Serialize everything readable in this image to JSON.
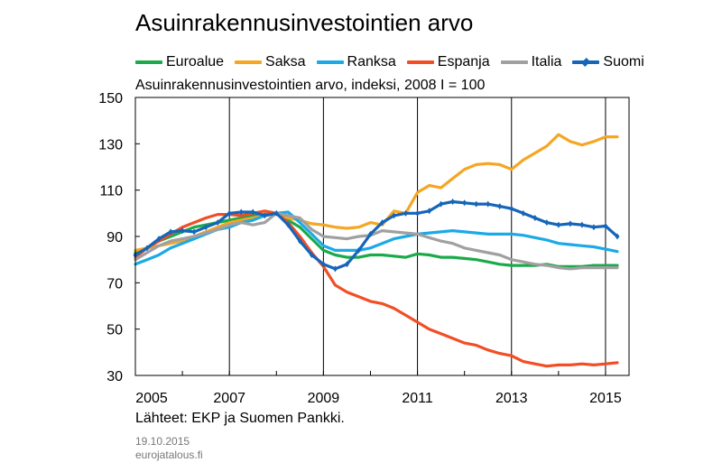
{
  "header": {
    "title": "Asuinrakennusinvestointien arvo",
    "subtitle": "Asuinrakennusinvestointien arvo, indeksi, 2008 I = 100"
  },
  "footer": {
    "source": "Lähteet: EKP ja Suomen Pankki.",
    "date": "19.10.2015",
    "site": "eurojatalous.fi"
  },
  "chart_data": {
    "type": "line",
    "title": "Asuinrakennusinvestointien arvo",
    "subtitle": "Asuinrakennusinvestointien arvo, indeksi, 2008 I = 100",
    "xlabel": "",
    "ylabel": "",
    "xlim": [
      2005.0,
      2015.5
    ],
    "ylim": [
      30,
      150
    ],
    "yticks": [
      30,
      50,
      70,
      90,
      110,
      130,
      150
    ],
    "xticks": [
      2005,
      2007,
      2009,
      2011,
      2013,
      2015
    ],
    "xtick_labels": [
      "2005",
      "2007",
      "2009",
      "2011",
      "2013",
      "2015"
    ],
    "grid": "vertical",
    "legend_position": "top",
    "x": [
      2005.0,
      2005.25,
      2005.5,
      2005.75,
      2006.0,
      2006.25,
      2006.5,
      2006.75,
      2007.0,
      2007.25,
      2007.5,
      2007.75,
      2008.0,
      2008.25,
      2008.5,
      2008.75,
      2009.0,
      2009.25,
      2009.5,
      2009.75,
      2010.0,
      2010.25,
      2010.5,
      2010.75,
      2011.0,
      2011.25,
      2011.5,
      2011.75,
      2012.0,
      2012.25,
      2012.5,
      2012.75,
      2013.0,
      2013.25,
      2013.5,
      2013.75,
      2014.0,
      2014.25,
      2014.5,
      2014.75,
      2015.0,
      2015.25
    ],
    "series": [
      {
        "name": "Euroalue",
        "color": "#1aaa4a",
        "marker": false,
        "values": [
          83,
          85,
          88,
          90,
          92,
          94,
          95,
          96,
          97,
          98,
          99,
          99.5,
          100,
          97,
          94,
          89,
          84,
          82,
          81,
          81,
          82,
          82,
          81.5,
          81,
          82.5,
          82,
          81,
          81,
          80.5,
          80,
          79,
          78,
          77.5,
          77.5,
          77.5,
          78,
          77,
          77,
          77,
          77.5,
          77.5,
          77.5
        ]
      },
      {
        "name": "Saksa",
        "color": "#f5a623",
        "marker": false,
        "values": [
          84,
          85,
          86,
          87,
          88,
          90,
          92,
          94,
          96,
          97,
          98,
          99,
          100,
          98,
          97,
          95.5,
          95,
          94,
          93.5,
          94,
          96,
          95,
          101,
          100,
          109,
          112,
          111,
          115,
          119,
          121,
          121.5,
          121,
          119,
          123,
          126,
          129,
          134,
          131,
          129.5,
          131,
          133,
          133
        ]
      },
      {
        "name": "Ranksa",
        "color": "#1ca9e6",
        "marker": false,
        "values": [
          78,
          80,
          82,
          85,
          87,
          89,
          91,
          93,
          94,
          96,
          97,
          99,
          100,
          100.5,
          96,
          91,
          86,
          84,
          84,
          84,
          85,
          87,
          89,
          90,
          91,
          91.5,
          92,
          92.5,
          92,
          91.5,
          91,
          91,
          91,
          90.5,
          89.5,
          88.5,
          87,
          86.5,
          86,
          85.5,
          84.5,
          83.5
        ]
      },
      {
        "name": "Espanja",
        "color": "#f24e25",
        "marker": false,
        "values": [
          81,
          85,
          88,
          91,
          94,
          96,
          98,
          99.5,
          99.5,
          99,
          100,
          101,
          100,
          96,
          90,
          83,
          77,
          69,
          66,
          64,
          62,
          61,
          59,
          56,
          53,
          50,
          48,
          46,
          44,
          43,
          41,
          39.5,
          38.5,
          36,
          35,
          34,
          34.5,
          34.5,
          35,
          34.5,
          35,
          35.5
        ]
      },
      {
        "name": "Italia",
        "color": "#a0a0a0",
        "marker": false,
        "values": [
          80,
          83,
          86,
          88,
          89,
          90,
          91.5,
          93,
          95,
          96,
          95,
          96,
          100,
          99,
          98,
          93,
          90,
          89.5,
          89,
          90,
          90.5,
          92.5,
          92,
          91.5,
          91,
          89.5,
          88,
          87,
          85,
          84,
          83,
          82,
          80,
          79,
          78,
          77.5,
          76.5,
          76,
          76.5,
          76.5,
          76.5,
          76.5
        ]
      },
      {
        "name": "Suomi",
        "color": "#1565b8",
        "marker": true,
        "values": [
          82,
          85,
          89,
          92,
          92.5,
          92,
          94,
          96,
          100,
          100.5,
          100.5,
          99,
          100,
          95,
          88,
          82,
          78,
          76,
          78,
          84,
          91,
          96,
          99,
          100,
          100,
          101,
          104,
          105,
          104.5,
          104,
          104,
          103,
          102,
          100,
          98,
          96,
          95,
          95.5,
          95,
          94,
          94.5,
          90
        ]
      }
    ]
  }
}
